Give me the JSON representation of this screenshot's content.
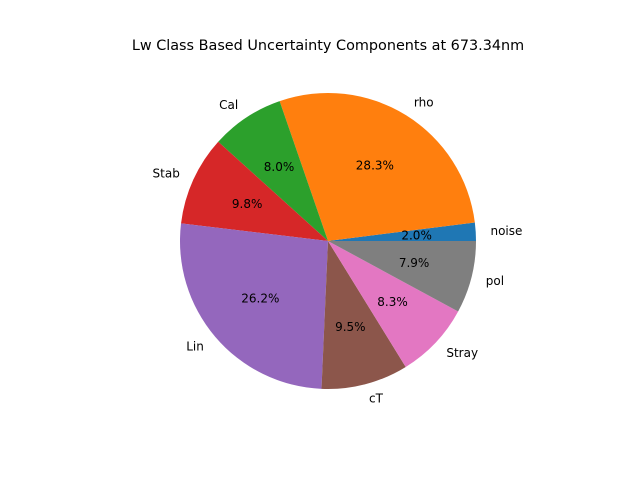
{
  "chart_data": {
    "type": "pie",
    "title": "Lw Class Based Uncertainty Components at 673.34nm",
    "start_angle_deg": 0,
    "direction": "counterclockwise",
    "slices": [
      {
        "label": "noise",
        "value": 2.0,
        "pct_label": "2.0%",
        "color": "#1f77b4"
      },
      {
        "label": "rho",
        "value": 28.3,
        "pct_label": "28.3%",
        "color": "#ff7f0e"
      },
      {
        "label": "Cal",
        "value": 8.0,
        "pct_label": "8.0%",
        "color": "#2ca02c"
      },
      {
        "label": "Stab",
        "value": 9.8,
        "pct_label": "9.8%",
        "color": "#d62728"
      },
      {
        "label": "Lin",
        "value": 26.2,
        "pct_label": "26.2%",
        "color": "#9467bd"
      },
      {
        "label": "cT",
        "value": 9.5,
        "pct_label": "9.5%",
        "color": "#8c564b"
      },
      {
        "label": "Stray",
        "value": 8.3,
        "pct_label": "8.3%",
        "color": "#e377c2"
      },
      {
        "label": "pol",
        "value": 7.9,
        "pct_label": "7.9%",
        "color": "#7f7f7f"
      }
    ]
  }
}
